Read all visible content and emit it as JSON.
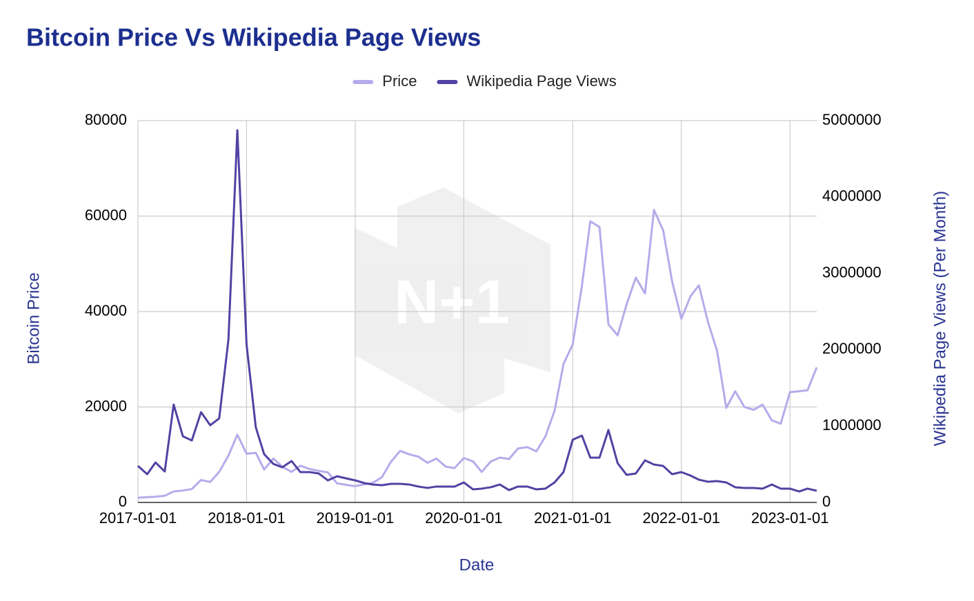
{
  "chart_data": {
    "type": "line",
    "title": "Bitcoin Price Vs Wikipedia Page Views",
    "watermark": "N+1",
    "x_label": "Date",
    "y_label": "Bitcoin Price",
    "y2_label": "Wikipedia Page Views (Per Month)",
    "x": [
      "2017-01-01",
      "2017-02-01",
      "2017-03-01",
      "2017-04-01",
      "2017-05-01",
      "2017-06-01",
      "2017-07-01",
      "2017-08-01",
      "2017-09-01",
      "2017-10-01",
      "2017-11-01",
      "2017-12-01",
      "2018-01-01",
      "2018-02-01",
      "2018-03-01",
      "2018-04-01",
      "2018-05-01",
      "2018-06-01",
      "2018-07-01",
      "2018-08-01",
      "2018-09-01",
      "2018-10-01",
      "2018-11-01",
      "2018-12-01",
      "2019-01-01",
      "2019-02-01",
      "2019-03-01",
      "2019-04-01",
      "2019-05-01",
      "2019-06-01",
      "2019-07-01",
      "2019-08-01",
      "2019-09-01",
      "2019-10-01",
      "2019-11-01",
      "2019-12-01",
      "2020-01-01",
      "2020-02-01",
      "2020-03-01",
      "2020-04-01",
      "2020-05-01",
      "2020-06-01",
      "2020-07-01",
      "2020-08-01",
      "2020-09-01",
      "2020-10-01",
      "2020-11-01",
      "2020-12-01",
      "2021-01-01",
      "2021-02-01",
      "2021-03-01",
      "2021-04-01",
      "2021-05-01",
      "2021-06-01",
      "2021-07-01",
      "2021-08-01",
      "2021-09-01",
      "2021-10-01",
      "2021-11-01",
      "2021-12-01",
      "2022-01-01",
      "2022-02-01",
      "2022-03-01",
      "2022-04-01",
      "2022-05-01",
      "2022-06-01",
      "2022-07-01",
      "2022-08-01",
      "2022-09-01",
      "2022-10-01",
      "2022-11-01",
      "2022-12-01",
      "2023-01-01",
      "2023-02-01",
      "2023-03-01",
      "2023-04-01"
    ],
    "series": [
      {
        "name": "Price",
        "color": "#b6abeb",
        "axis": "y",
        "values": [
          1000,
          1100,
          1200,
          1400,
          2300,
          2500,
          2800,
          4700,
          4300,
          6400,
          9800,
          14200,
          10200,
          10400,
          6900,
          9200,
          7500,
          6400,
          7700,
          7000,
          6600,
          6300,
          4000,
          3700,
          3400,
          3800,
          4100,
          5300,
          8500,
          10800,
          10100,
          9600,
          8300,
          9200,
          7500,
          7200,
          9300,
          8600,
          6400,
          8600,
          9400,
          9100,
          11300,
          11600,
          10700,
          13800,
          19200,
          29000,
          33100,
          45400,
          58900,
          57700,
          37300,
          35000,
          41500,
          47100,
          43800,
          61300,
          57000,
          46300,
          38500,
          43200,
          45500,
          37700,
          31800,
          19800,
          23300,
          20000,
          19400,
          20500,
          17200,
          16500,
          23100,
          23300,
          23500,
          28300
        ]
      },
      {
        "name": "Wikipedia Page Views",
        "color": "#5341a3",
        "axis": "y2",
        "values": [
          478000,
          370000,
          523000,
          406000,
          1282000,
          866000,
          812000,
          1182000,
          1011000,
          1101000,
          2130000,
          4874000,
          2067000,
          984000,
          632000,
          505000,
          460000,
          542000,
          397000,
          397000,
          379000,
          289000,
          343000,
          316000,
          289000,
          253000,
          235000,
          226000,
          244000,
          244000,
          235000,
          208000,
          190000,
          208000,
          208000,
          208000,
          262000,
          171000,
          181000,
          199000,
          235000,
          162000,
          208000,
          208000,
          171000,
          181000,
          262000,
          397000,
          821000,
          875000,
          587000,
          587000,
          948000,
          514000,
          361000,
          379000,
          551000,
          496000,
          478000,
          370000,
          397000,
          352000,
          298000,
          271000,
          280000,
          262000,
          199000,
          190000,
          190000,
          181000,
          235000,
          181000,
          181000,
          144000,
          181000,
          153000
        ]
      }
    ],
    "xlim": [
      "2017-01-01",
      "2023-04-01"
    ],
    "xticks": [
      "2017-01-01",
      "2018-01-01",
      "2019-01-01",
      "2020-01-01",
      "2021-01-01",
      "2022-01-01",
      "2023-01-01"
    ],
    "ylim": [
      0,
      80000
    ],
    "yticks": [
      0,
      20000,
      40000,
      60000,
      80000
    ],
    "y2lim": [
      0,
      5000000
    ],
    "y2ticks": [
      0,
      1000000,
      2000000,
      3000000,
      4000000,
      5000000
    ],
    "grid": true,
    "legend": "top"
  }
}
